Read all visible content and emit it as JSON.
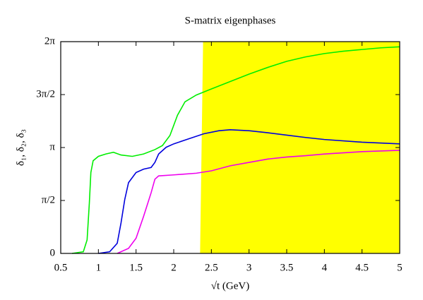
{
  "chart_data": {
    "type": "line",
    "title": "S-matrix eigenphases",
    "xlabel": "√t (GeV)",
    "ylabel": "δ₁, δ₂, δ₃",
    "xlim": [
      0.5,
      5
    ],
    "xticks": [
      0.5,
      1,
      1.5,
      2,
      2.5,
      3,
      3.5,
      4,
      4.5,
      5
    ],
    "ylim": [
      0,
      6.2832
    ],
    "yticks": [
      0,
      {
        "value": 1.5708,
        "label": "π/2"
      },
      {
        "value": 3.1416,
        "label": "π"
      },
      {
        "value": 4.7124,
        "label": "3π/2"
      },
      {
        "value": 6.2832,
        "label": "2π"
      }
    ],
    "shaded_region": {
      "x_bottom": 2.35,
      "x_top": 2.39,
      "color": "#ffff00"
    },
    "series": [
      {
        "color": "#00ee00",
        "x": [
          0.65,
          0.8,
          0.85,
          0.88,
          0.9,
          0.93,
          1.0,
          1.1,
          1.2,
          1.3,
          1.45,
          1.6,
          1.75,
          1.85,
          1.95,
          2.05,
          2.15,
          2.3,
          2.5,
          2.75,
          3.0,
          3.25,
          3.5,
          3.75,
          4.0,
          4.25,
          4.5,
          4.75,
          5.0
        ],
        "values": [
          0,
          0.05,
          0.4,
          1.5,
          2.4,
          2.75,
          2.88,
          2.95,
          3.0,
          2.92,
          2.88,
          2.95,
          3.08,
          3.2,
          3.5,
          4.1,
          4.5,
          4.7,
          4.88,
          5.1,
          5.32,
          5.52,
          5.7,
          5.83,
          5.93,
          6.0,
          6.05,
          6.1,
          6.13
        ]
      },
      {
        "color": "#0000dd",
        "x": [
          1.0,
          1.15,
          1.25,
          1.3,
          1.35,
          1.4,
          1.5,
          1.6,
          1.7,
          1.75,
          1.8,
          1.9,
          2.0,
          2.2,
          2.4,
          2.6,
          2.75,
          3.0,
          3.25,
          3.5,
          3.75,
          4.0,
          4.5,
          5.0
        ],
        "values": [
          0,
          0.05,
          0.3,
          0.9,
          1.6,
          2.1,
          2.4,
          2.5,
          2.55,
          2.7,
          2.95,
          3.15,
          3.25,
          3.4,
          3.55,
          3.64,
          3.67,
          3.64,
          3.58,
          3.51,
          3.44,
          3.38,
          3.3,
          3.25
        ]
      },
      {
        "color": "#ee00ee",
        "x": [
          1.25,
          1.4,
          1.5,
          1.6,
          1.7,
          1.75,
          1.8,
          2.0,
          2.3,
          2.5,
          2.75,
          3.0,
          3.25,
          3.5,
          3.75,
          4.0,
          4.5,
          5.0
        ],
        "values": [
          0,
          0.15,
          0.45,
          1.1,
          1.8,
          2.2,
          2.3,
          2.33,
          2.38,
          2.45,
          2.6,
          2.7,
          2.8,
          2.86,
          2.9,
          2.95,
          3.02,
          3.06
        ]
      }
    ]
  }
}
